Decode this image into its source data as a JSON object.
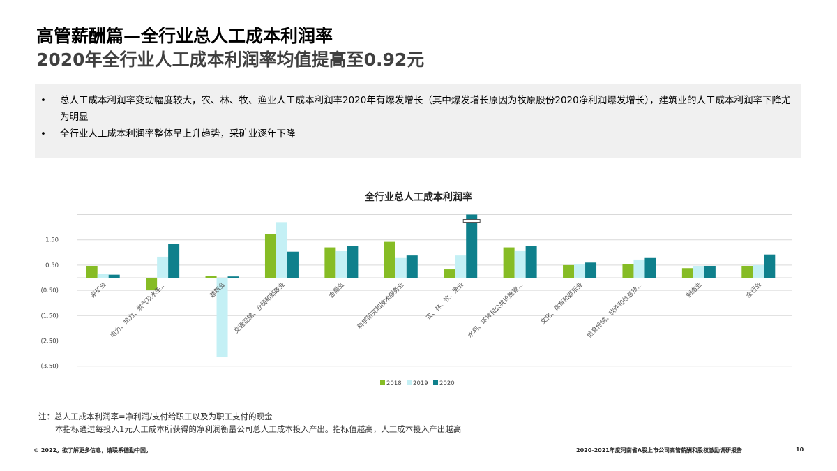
{
  "title": "高管薪酬篇—全行业总人工成本利润率",
  "subtitle": "2020年全行业人工成本利润率均值提高至0.92元",
  "bullets": [
    "总人工成本利润率变动幅度较大，农、林、牧、渔业人工成本利润率2020年有爆发增长（其中爆发增长原因为牧原股份2020净利润爆发增长），建筑业的人工成本利润率下降尤为明显",
    "全行业人工成本利润率整体呈上升趋势，采矿业逐年下降"
  ],
  "chart_data": {
    "type": "bar",
    "title": "全行业总人工成本利润率",
    "categories": [
      "采矿业",
      "电力、热力、燃气及水生…",
      "建筑业",
      "交通运输、仓储和邮政业",
      "金融业",
      "科学研究和技术服务业",
      "农、林、牧、渔业",
      "水利、环境和公共设施管…",
      "文化、体育和娱乐业",
      "信息传输、软件和信息技…",
      "制造业",
      "全行业"
    ],
    "series": [
      {
        "name": "2018",
        "color": "#86bc25",
        "values": [
          0.47,
          -0.5,
          0.07,
          1.73,
          1.2,
          1.42,
          0.33,
          1.2,
          0.5,
          0.55,
          0.38,
          0.47
        ]
      },
      {
        "name": "2019",
        "color": "#c4f0f5",
        "values": [
          0.15,
          0.83,
          -3.15,
          2.2,
          1.05,
          0.78,
          0.88,
          1.08,
          0.55,
          0.72,
          0.47,
          0.5
        ]
      },
      {
        "name": "2020",
        "color": "#0f808c",
        "values": [
          0.12,
          1.35,
          0.05,
          1.03,
          1.27,
          0.88,
          2.5,
          1.25,
          0.6,
          0.78,
          0.47,
          0.92
        ]
      }
    ],
    "axis_break": {
      "category": "农、林、牧、渔业",
      "series": "2020"
    },
    "yticks": [
      "1.50",
      "0.50",
      "(0.50)",
      "(1.50)",
      "(2.50)",
      "(3.50)"
    ],
    "ytick_values": [
      1.5,
      0.5,
      -0.5,
      -1.5,
      -2.5,
      -3.5
    ],
    "ylim": [
      -3.5,
      2.5
    ],
    "legend": "bottom"
  },
  "note": {
    "line1": "注：总人工成本利润率=净利润/支付给职工以及为职工支付的现金",
    "line2": "本指标通过每投入1元人工成本所获得的净利润衡量公司总人工成本投入产出。指标值越高，人工成本投入产出越高"
  },
  "footer": {
    "left": "© 2022。欲了解更多信息，请联系德勤中国。",
    "right": "2020-2021年度河南省A股上市公司高管薪酬和股权激励调研报告",
    "page": "10"
  }
}
